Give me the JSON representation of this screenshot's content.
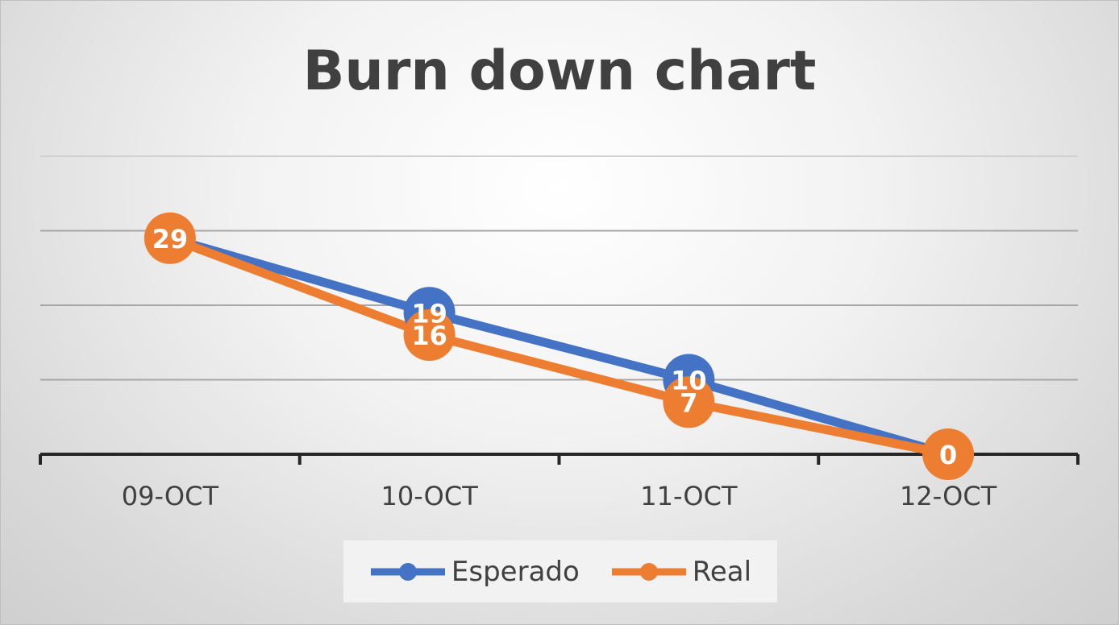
{
  "chart_data": {
    "type": "line",
    "title": "Burn down chart",
    "categories": [
      "09-OCT",
      "10-OCT",
      "11-OCT",
      "12-OCT"
    ],
    "series": [
      {
        "name": "Esperado",
        "values": [
          29,
          19,
          10,
          0
        ],
        "color": "#4472C4",
        "labels": [
          "",
          "19",
          "10",
          ""
        ]
      },
      {
        "name": "Real",
        "values": [
          29,
          16,
          7,
          0
        ],
        "color": "#ED7D31",
        "labels": [
          "29",
          "16",
          "7",
          "0"
        ]
      }
    ],
    "ylim": [
      0,
      40
    ],
    "gridlines": true,
    "legend_position": "bottom",
    "data_labels": true
  }
}
